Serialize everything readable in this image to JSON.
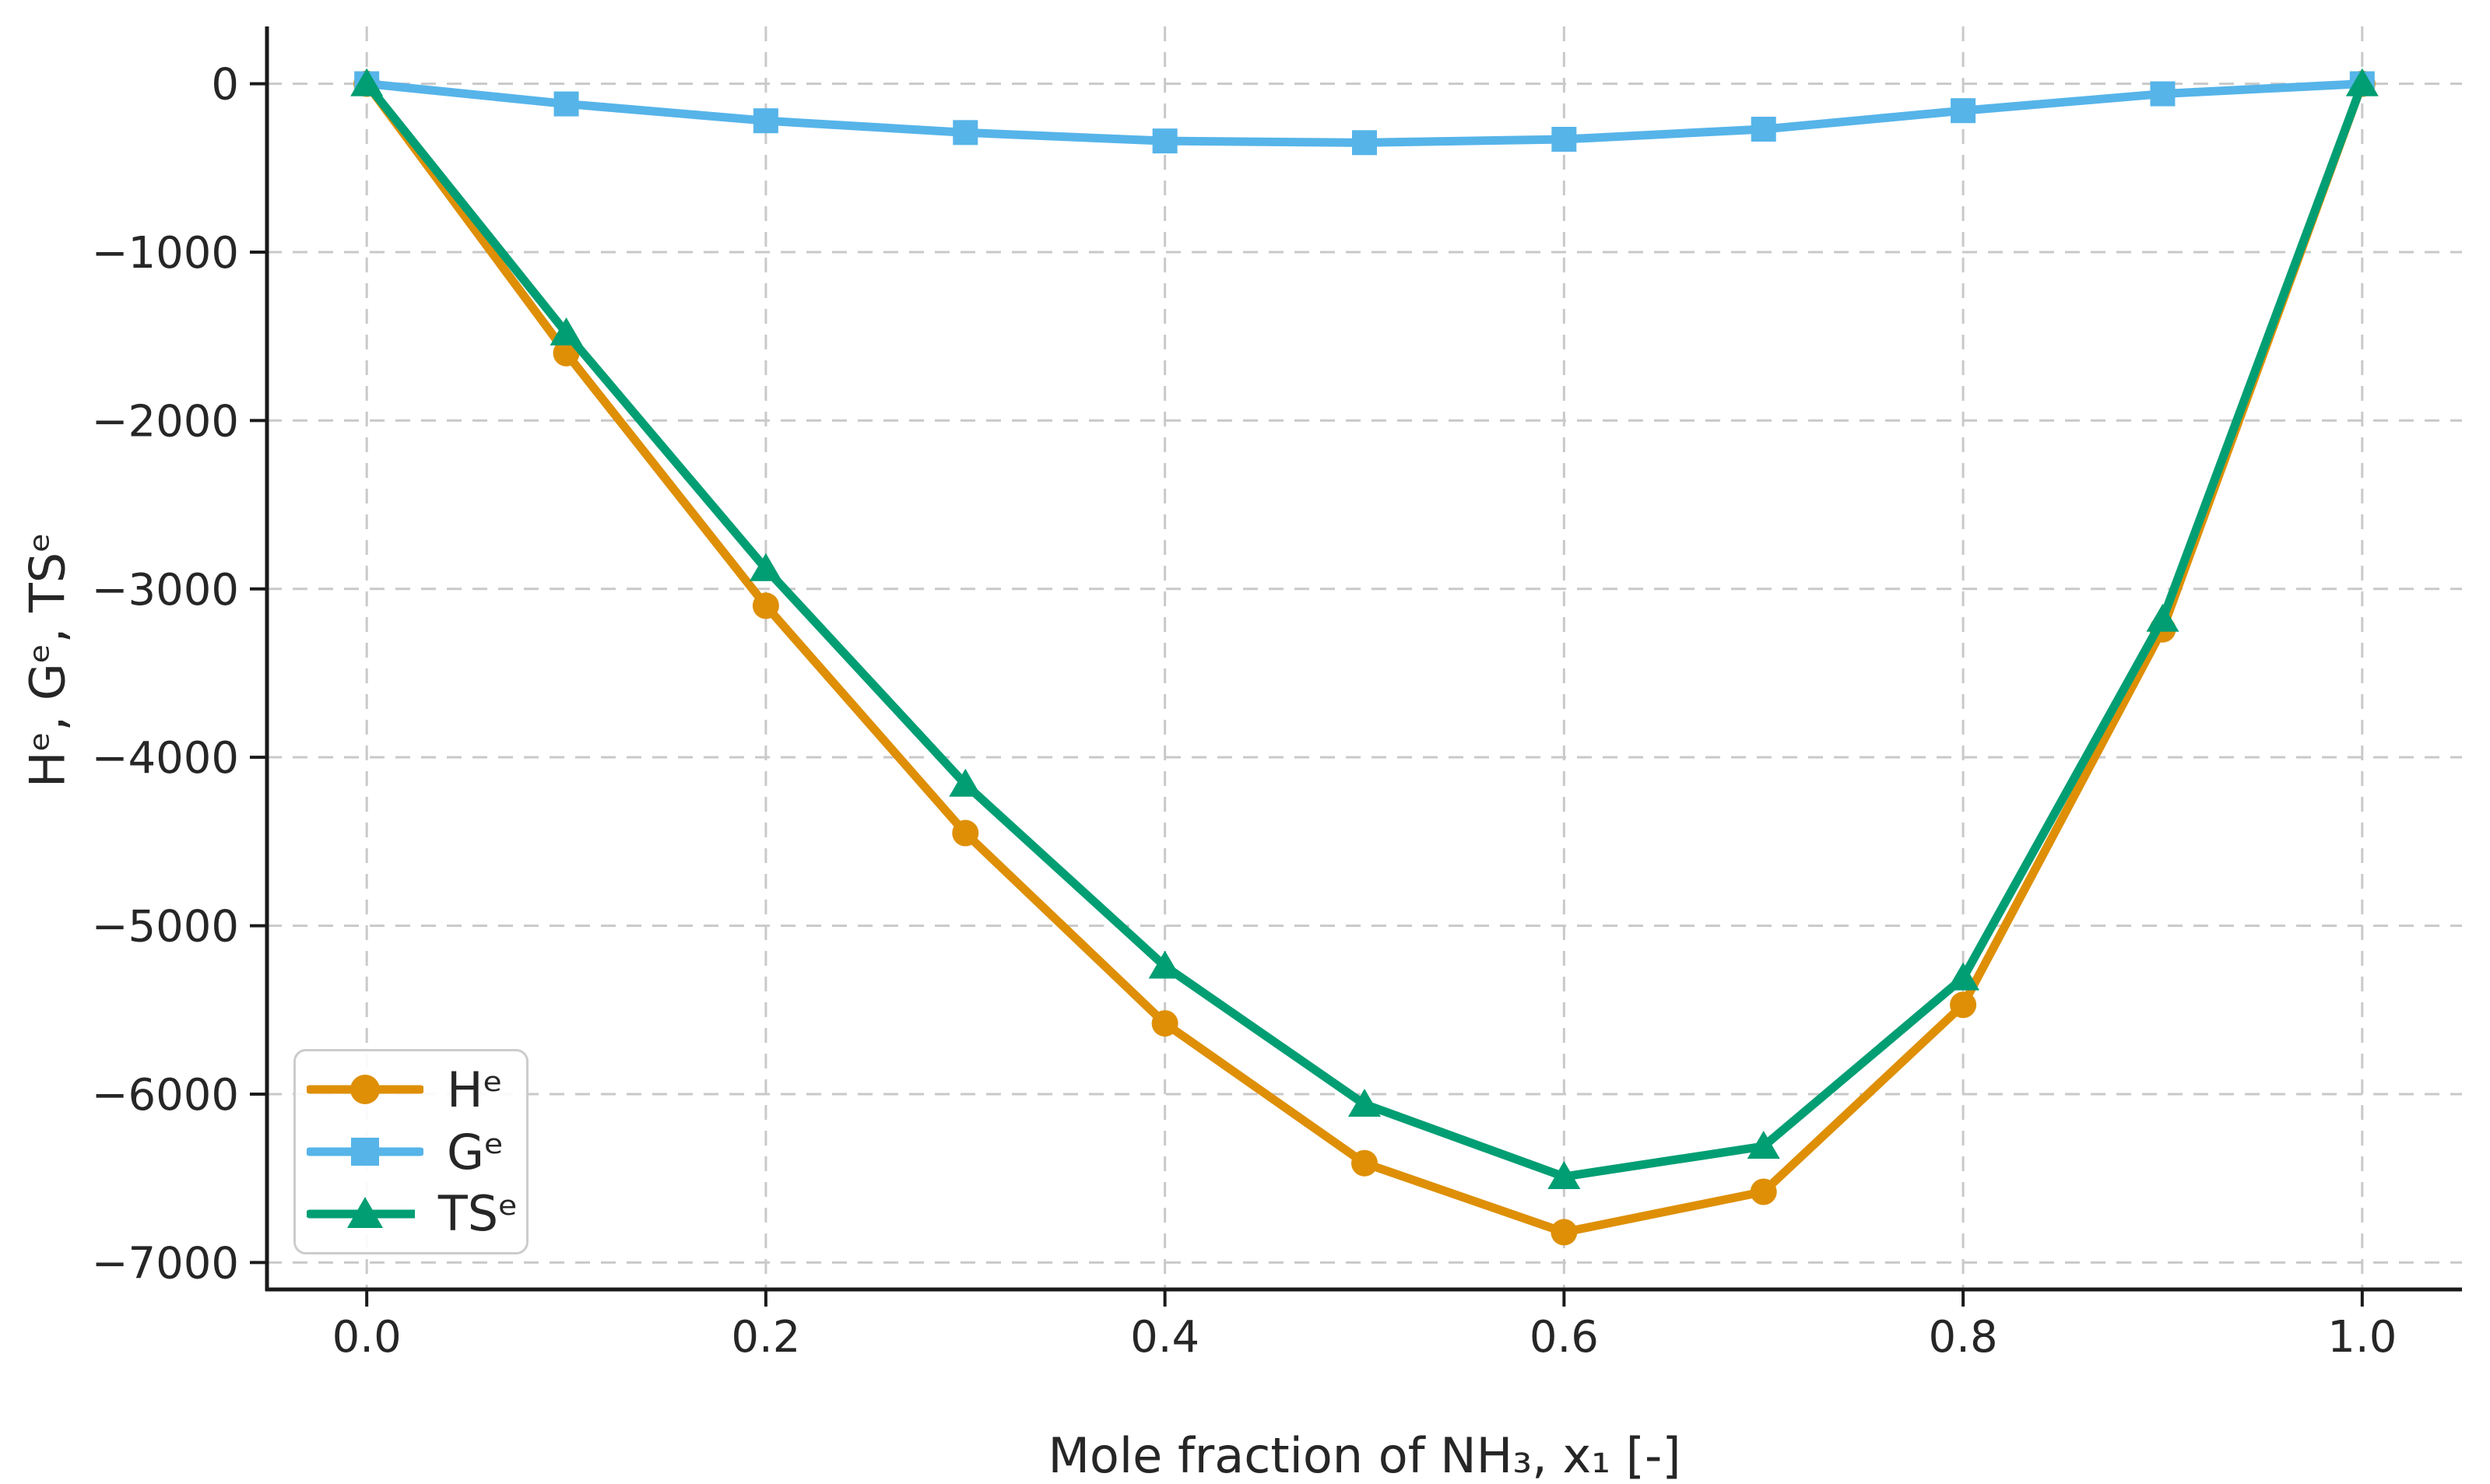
{
  "chart_data": {
    "type": "line",
    "title": "",
    "xlabel": "Mole fraction of NH₃, x₁ [-]",
    "ylabel": "Hᵉ, Gᵉ, TSᵉ",
    "x": [
      0.0,
      0.1,
      0.2,
      0.3,
      0.4,
      0.5,
      0.6,
      0.7,
      0.8,
      0.9,
      1.0
    ],
    "series": [
      {
        "id": "h-excess",
        "name": "Hᵉ",
        "color": "#DE8F05",
        "marker": "circle",
        "values": [
          0,
          -1600,
          -3100,
          -4450,
          -5580,
          -6410,
          -6820,
          -6580,
          -5470,
          -3240,
          0
        ]
      },
      {
        "id": "g-excess",
        "name": "Gᵉ",
        "color": "#56B4E9",
        "marker": "square",
        "values": [
          0,
          -120,
          -220,
          -290,
          -340,
          -350,
          -330,
          -270,
          -160,
          -60,
          0
        ]
      },
      {
        "id": "ts-excess",
        "name": "TSᵉ",
        "color": "#029E73",
        "marker": "triangle",
        "values": [
          0,
          -1480,
          -2880,
          -4160,
          -5240,
          -6060,
          -6490,
          -6310,
          -5310,
          -3180,
          0
        ]
      }
    ],
    "xticks": [
      0.0,
      0.2,
      0.4,
      0.6,
      0.8,
      1.0
    ],
    "xtick_labels": [
      "0.0",
      "0.2",
      "0.4",
      "0.6",
      "0.8",
      "1.0"
    ],
    "yticks": [
      0,
      -1000,
      -2000,
      -3000,
      -4000,
      -5000,
      -6000,
      -7000
    ],
    "ytick_labels": [
      "0",
      "−1000",
      "−2000",
      "−3000",
      "−4000",
      "−5000",
      "−6000",
      "−7000"
    ],
    "xlim": [
      -0.05,
      1.05
    ],
    "ylim": [
      -7160,
      340
    ],
    "grid": true,
    "grid_style": "dashed",
    "legend_position": "lower left",
    "colors": {
      "grid": "#c9c9c9",
      "spine": "#1a1a1a",
      "tick": "#1a1a1a",
      "text": "#262626",
      "background": "#ffffff"
    }
  }
}
